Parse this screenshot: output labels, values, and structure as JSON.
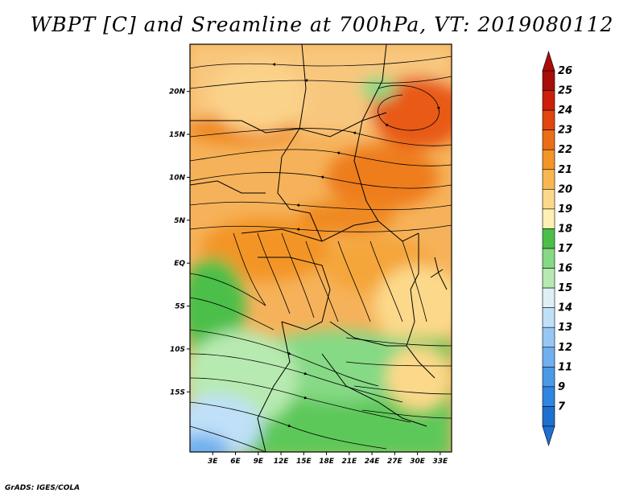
{
  "title": "WBPT [C] and Sreamline at 700hPa, VT: 2019080112",
  "credit": "GrADS: IGES/COLA",
  "map": {
    "lon_labels": [
      "3E",
      "6E",
      "9E",
      "12E",
      "15E",
      "18E",
      "21E",
      "24E",
      "27E",
      "30E",
      "33E"
    ],
    "lat_labels": [
      "20N",
      "15N",
      "10N",
      "5N",
      "EQ",
      "5S",
      "10S",
      "15S"
    ],
    "lon_range": [
      0,
      34.5
    ],
    "lat_range": [
      -22,
      25.5
    ],
    "lon_tick_values": [
      3,
      6,
      9,
      12,
      15,
      18,
      21,
      24,
      27,
      30,
      33
    ],
    "lat_tick_values": [
      20,
      15,
      10,
      5,
      0,
      -5,
      -10,
      -15
    ]
  },
  "colorbar": {
    "labels": [
      "7",
      "9",
      "11",
      "12",
      "13",
      "14",
      "15",
      "16",
      "17",
      "18",
      "19",
      "20",
      "21",
      "22",
      "23",
      "24",
      "25",
      "26"
    ],
    "colors": [
      "#1f6fd0",
      "#2e86e0",
      "#4a9ae8",
      "#6fb0ef",
      "#97c8f5",
      "#bfe0f8",
      "#dff0f5",
      "#b7eab0",
      "#86d985",
      "#4cbf4a",
      "#fff1b3",
      "#fcd98a",
      "#f9b652",
      "#f39527",
      "#ec6d17",
      "#e2450e",
      "#cd1e0a",
      "#a80d0a"
    ]
  }
}
